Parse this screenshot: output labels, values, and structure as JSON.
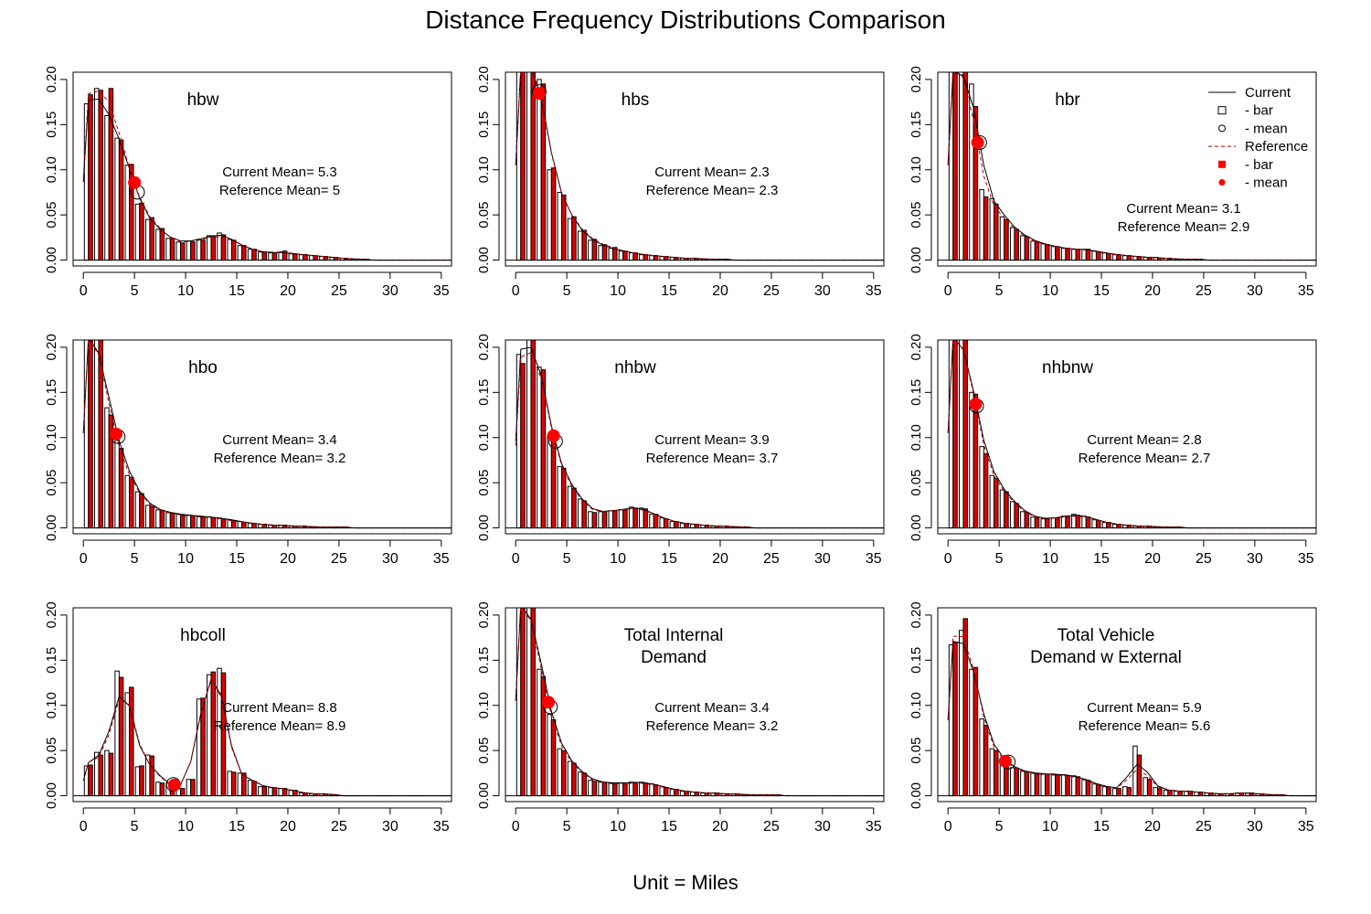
{
  "title": "Distance Frequency Distributions Comparison",
  "xlabel": "Unit = Miles",
  "colors": {
    "current_bar": "#ffffff",
    "reference_bar": "#e00000",
    "current_line": "#000000",
    "reference_line": "#b00000",
    "reference_mean": "#ff0000"
  },
  "legend": {
    "entries": [
      {
        "label": "Current",
        "symbol": "solid-line"
      },
      {
        "label": " - bar",
        "symbol": "open-square"
      },
      {
        "label": " - mean",
        "symbol": "open-circle"
      },
      {
        "label": "Reference",
        "symbol": "dashed-red-line"
      },
      {
        "label": " - bar",
        "symbol": "filled-red-square"
      },
      {
        "label": " - mean",
        "symbol": "filled-red-circle"
      }
    ]
  },
  "chart_data": [
    {
      "type": "bar",
      "name": "hbw",
      "title_lines": [
        "hbw"
      ],
      "current_mean_label": "Current Mean= 5.3",
      "reference_mean_label": "Reference Mean= 5",
      "current_mean": 5.3,
      "reference_mean": 5.0,
      "xlim": [
        -1,
        36
      ],
      "ylim": [
        0,
        0.2
      ],
      "xticks": [
        "0",
        "5",
        "10",
        "15",
        "20",
        "25",
        "30",
        "35"
      ],
      "yticks": [
        "0.00",
        "0.05",
        "0.10",
        "0.15",
        "0.20"
      ],
      "x": [
        0.5,
        1.5,
        2.5,
        3.5,
        4.5,
        5.5,
        6.5,
        7.5,
        8.5,
        9.5,
        10.5,
        11.5,
        12.5,
        13.5,
        14.5,
        15.5,
        16.5,
        17.5,
        18.5,
        19.5,
        20.5,
        21.5,
        22.5,
        23.5,
        24.5,
        25.5,
        26.5,
        27.5
      ],
      "current": [
        0.173,
        0.19,
        0.16,
        0.135,
        0.105,
        0.062,
        0.045,
        0.034,
        0.024,
        0.02,
        0.021,
        0.023,
        0.027,
        0.03,
        0.023,
        0.016,
        0.012,
        0.009,
        0.008,
        0.009,
        0.007,
        0.006,
        0.005,
        0.004,
        0.003,
        0.002,
        0.001,
        0.001
      ],
      "reference": [
        0.183,
        0.188,
        0.19,
        0.133,
        0.106,
        0.063,
        0.047,
        0.035,
        0.024,
        0.019,
        0.02,
        0.022,
        0.026,
        0.028,
        0.022,
        0.016,
        0.012,
        0.009,
        0.008,
        0.01,
        0.007,
        0.006,
        0.005,
        0.004,
        0.003,
        0.002,
        0.001,
        0.001
      ]
    },
    {
      "type": "bar",
      "name": "hbs",
      "title_lines": [
        "hbs"
      ],
      "current_mean_label": "Current Mean= 2.3",
      "reference_mean_label": "Reference Mean= 2.3",
      "current_mean": 2.3,
      "reference_mean": 2.3,
      "xlim": [
        -1,
        36
      ],
      "ylim": [
        0,
        0.2
      ],
      "xticks": [
        "0",
        "5",
        "10",
        "15",
        "20",
        "25",
        "30",
        "35"
      ],
      "yticks": [
        "0.00",
        "0.05",
        "0.10",
        "0.15",
        "0.20"
      ],
      "x": [
        0.5,
        1.5,
        2.5,
        3.5,
        4.5,
        5.5,
        6.5,
        7.5,
        8.5,
        9.5,
        10.5,
        11.5,
        12.5,
        13.5,
        14.5,
        15.5,
        16.5,
        17.5,
        18.5,
        19.5,
        20.5
      ],
      "current": [
        0.21,
        0.22,
        0.2,
        0.1,
        0.075,
        0.046,
        0.032,
        0.022,
        0.016,
        0.013,
        0.01,
        0.008,
        0.006,
        0.005,
        0.004,
        0.003,
        0.002,
        0.002,
        0.001,
        0.001,
        0.001
      ],
      "reference": [
        0.21,
        0.22,
        0.195,
        0.102,
        0.072,
        0.048,
        0.033,
        0.023,
        0.017,
        0.014,
        0.01,
        0.008,
        0.006,
        0.005,
        0.004,
        0.003,
        0.002,
        0.002,
        0.001,
        0.001,
        0.001
      ]
    },
    {
      "type": "bar",
      "name": "hbr",
      "title_lines": [
        "hbr"
      ],
      "current_mean_label": "Current Mean= 3.1",
      "reference_mean_label": "Reference Mean= 2.9",
      "current_mean": 3.1,
      "reference_mean": 2.9,
      "xlim": [
        -1,
        36
      ],
      "ylim": [
        0,
        0.2
      ],
      "xticks": [
        "0",
        "5",
        "10",
        "15",
        "20",
        "25",
        "30",
        "35"
      ],
      "yticks": [
        "0.00",
        "0.05",
        "0.10",
        "0.15",
        "0.20"
      ],
      "x": [
        0.5,
        1.5,
        2.5,
        3.5,
        4.5,
        5.5,
        6.5,
        7.5,
        8.5,
        9.5,
        10.5,
        11.5,
        12.5,
        13.5,
        14.5,
        15.5,
        16.5,
        17.5,
        18.5,
        19.5,
        20.5,
        21.5,
        22.5,
        23.5,
        24.5
      ],
      "current": [
        0.21,
        0.205,
        0.195,
        0.078,
        0.068,
        0.048,
        0.036,
        0.027,
        0.021,
        0.018,
        0.015,
        0.013,
        0.012,
        0.012,
        0.01,
        0.008,
        0.006,
        0.005,
        0.004,
        0.003,
        0.003,
        0.002,
        0.001,
        0.001,
        0.001
      ],
      "reference": [
        0.215,
        0.21,
        0.17,
        0.07,
        0.062,
        0.045,
        0.034,
        0.026,
        0.02,
        0.017,
        0.015,
        0.013,
        0.012,
        0.012,
        0.009,
        0.007,
        0.006,
        0.005,
        0.004,
        0.003,
        0.002,
        0.002,
        0.001,
        0.001,
        0.001
      ]
    },
    {
      "type": "bar",
      "name": "hbo",
      "title_lines": [
        "hbo"
      ],
      "current_mean_label": "Current Mean= 3.4",
      "reference_mean_label": "Reference Mean= 3.2",
      "current_mean": 3.4,
      "reference_mean": 3.2,
      "xlim": [
        -1,
        36
      ],
      "ylim": [
        0,
        0.2
      ],
      "xticks": [
        "0",
        "5",
        "10",
        "15",
        "20",
        "25",
        "30",
        "35"
      ],
      "yticks": [
        "0.00",
        "0.05",
        "0.10",
        "0.15",
        "0.20"
      ],
      "x": [
        0.5,
        1.5,
        2.5,
        3.5,
        4.5,
        5.5,
        6.5,
        7.5,
        8.5,
        9.5,
        10.5,
        11.5,
        12.5,
        13.5,
        14.5,
        15.5,
        16.5,
        17.5,
        18.5,
        19.5,
        20.5,
        21.5,
        22.5,
        23.5,
        24.5,
        25.5
      ],
      "current": [
        0.21,
        0.215,
        0.133,
        0.097,
        0.058,
        0.04,
        0.025,
        0.02,
        0.017,
        0.015,
        0.014,
        0.013,
        0.012,
        0.011,
        0.009,
        0.007,
        0.005,
        0.004,
        0.003,
        0.003,
        0.002,
        0.002,
        0.001,
        0.001,
        0.001,
        0.001
      ],
      "reference": [
        0.21,
        0.215,
        0.125,
        0.088,
        0.056,
        0.038,
        0.024,
        0.019,
        0.016,
        0.014,
        0.013,
        0.012,
        0.011,
        0.01,
        0.008,
        0.006,
        0.005,
        0.004,
        0.003,
        0.003,
        0.002,
        0.002,
        0.001,
        0.001,
        0.001,
        0.001
      ]
    },
    {
      "type": "bar",
      "name": "nhbw",
      "title_lines": [
        "nhbw"
      ],
      "current_mean_label": "Current Mean= 3.9",
      "reference_mean_label": "Reference Mean= 3.7",
      "current_mean": 3.9,
      "reference_mean": 3.7,
      "xlim": [
        -1,
        36
      ],
      "ylim": [
        0,
        0.2
      ],
      "xticks": [
        "0",
        "5",
        "10",
        "15",
        "20",
        "25",
        "30",
        "35"
      ],
      "yticks": [
        "0.00",
        "0.05",
        "0.10",
        "0.15",
        "0.20"
      ],
      "x": [
        0.5,
        1.5,
        2.5,
        3.5,
        4.5,
        5.5,
        6.5,
        7.5,
        8.5,
        9.5,
        10.5,
        11.5,
        12.5,
        13.5,
        14.5,
        15.5,
        16.5,
        17.5,
        18.5,
        19.5,
        20.5,
        21.5,
        22.5
      ],
      "current": [
        0.192,
        0.215,
        0.178,
        0.102,
        0.068,
        0.046,
        0.032,
        0.018,
        0.018,
        0.019,
        0.02,
        0.023,
        0.022,
        0.015,
        0.011,
        0.007,
        0.005,
        0.004,
        0.003,
        0.002,
        0.002,
        0.001,
        0.001
      ],
      "reference": [
        0.182,
        0.21,
        0.175,
        0.1,
        0.066,
        0.044,
        0.03,
        0.017,
        0.018,
        0.019,
        0.02,
        0.022,
        0.021,
        0.015,
        0.01,
        0.007,
        0.005,
        0.004,
        0.003,
        0.002,
        0.002,
        0.001,
        0.001
      ]
    },
    {
      "type": "bar",
      "name": "nhbnw",
      "title_lines": [
        "nhbnw"
      ],
      "current_mean_label": "Current Mean= 2.8",
      "reference_mean_label": "Reference Mean= 2.7",
      "current_mean": 2.8,
      "reference_mean": 2.7,
      "xlim": [
        -1,
        36
      ],
      "ylim": [
        0,
        0.2
      ],
      "xticks": [
        "0",
        "5",
        "10",
        "15",
        "20",
        "25",
        "30",
        "35"
      ],
      "yticks": [
        "0.00",
        "0.05",
        "0.10",
        "0.15",
        "0.20"
      ],
      "x": [
        0.5,
        1.5,
        2.5,
        3.5,
        4.5,
        5.5,
        6.5,
        7.5,
        8.5,
        9.5,
        10.5,
        11.5,
        12.5,
        13.5,
        14.5,
        15.5,
        16.5,
        17.5,
        18.5,
        19.5,
        20.5,
        21.5,
        22.5
      ],
      "current": [
        0.21,
        0.215,
        0.15,
        0.09,
        0.058,
        0.042,
        0.029,
        0.018,
        0.012,
        0.01,
        0.011,
        0.013,
        0.015,
        0.013,
        0.009,
        0.006,
        0.004,
        0.003,
        0.002,
        0.002,
        0.001,
        0.001,
        0.001
      ],
      "reference": [
        0.21,
        0.215,
        0.148,
        0.082,
        0.055,
        0.04,
        0.027,
        0.017,
        0.011,
        0.01,
        0.011,
        0.012,
        0.014,
        0.012,
        0.008,
        0.006,
        0.004,
        0.003,
        0.002,
        0.002,
        0.001,
        0.001,
        0.001
      ]
    },
    {
      "type": "bar",
      "name": "hbcoll",
      "title_lines": [
        "hbcoll"
      ],
      "current_mean_label": "Current Mean= 8.8",
      "reference_mean_label": "Reference Mean= 8.9",
      "current_mean": 8.8,
      "reference_mean": 8.9,
      "xlim": [
        -1,
        36
      ],
      "ylim": [
        0,
        0.2
      ],
      "xticks": [
        "0",
        "5",
        "10",
        "15",
        "20",
        "25",
        "30",
        "35"
      ],
      "yticks": [
        "0.00",
        "0.05",
        "0.10",
        "0.15",
        "0.20"
      ],
      "x": [
        0.5,
        1.5,
        2.5,
        3.5,
        4.5,
        5.5,
        6.5,
        7.5,
        8.5,
        9.5,
        10.5,
        11.5,
        12.5,
        13.5,
        14.5,
        15.5,
        16.5,
        17.5,
        18.5,
        19.5,
        20.5,
        21.5,
        22.5,
        23.5,
        24.5
      ],
      "current": [
        0.033,
        0.048,
        0.05,
        0.138,
        0.114,
        0.032,
        0.045,
        0.015,
        0.014,
        0.008,
        0.018,
        0.107,
        0.134,
        0.141,
        0.027,
        0.025,
        0.017,
        0.01,
        0.009,
        0.008,
        0.006,
        0.003,
        0.002,
        0.002,
        0.001
      ],
      "reference": [
        0.034,
        0.045,
        0.047,
        0.131,
        0.12,
        0.033,
        0.044,
        0.014,
        0.013,
        0.008,
        0.018,
        0.108,
        0.137,
        0.136,
        0.026,
        0.025,
        0.016,
        0.01,
        0.009,
        0.008,
        0.006,
        0.003,
        0.002,
        0.002,
        0.001
      ]
    },
    {
      "type": "bar",
      "name": "Total Internal Demand",
      "title_lines": [
        "Total Internal",
        "Demand"
      ],
      "current_mean_label": "Current Mean= 3.4",
      "reference_mean_label": "Reference Mean= 3.2",
      "current_mean": 3.4,
      "reference_mean": 3.2,
      "xlim": [
        -1,
        36
      ],
      "ylim": [
        0,
        0.2
      ],
      "xticks": [
        "0",
        "5",
        "10",
        "15",
        "20",
        "25",
        "30",
        "35"
      ],
      "yticks": [
        "0.00",
        "0.05",
        "0.10",
        "0.15",
        "0.20"
      ],
      "x": [
        0.5,
        1.5,
        2.5,
        3.5,
        4.5,
        5.5,
        6.5,
        7.5,
        8.5,
        9.5,
        10.5,
        11.5,
        12.5,
        13.5,
        14.5,
        15.5,
        16.5,
        17.5,
        18.5,
        19.5,
        20.5,
        21.5,
        22.5,
        23.5,
        24.5,
        25.5
      ],
      "current": [
        0.21,
        0.215,
        0.14,
        0.09,
        0.052,
        0.038,
        0.026,
        0.017,
        0.015,
        0.014,
        0.014,
        0.015,
        0.015,
        0.013,
        0.01,
        0.007,
        0.005,
        0.004,
        0.003,
        0.003,
        0.002,
        0.002,
        0.001,
        0.001,
        0.001,
        0.001
      ],
      "reference": [
        0.21,
        0.215,
        0.132,
        0.084,
        0.05,
        0.036,
        0.025,
        0.016,
        0.014,
        0.013,
        0.013,
        0.014,
        0.014,
        0.012,
        0.009,
        0.007,
        0.005,
        0.004,
        0.003,
        0.003,
        0.002,
        0.002,
        0.001,
        0.001,
        0.001,
        0.001
      ]
    },
    {
      "type": "bar",
      "name": "Total Vehicle Demand w External",
      "title_lines": [
        "Total Vehicle",
        "Demand w External"
      ],
      "current_mean_label": "Current Mean= 5.9",
      "reference_mean_label": "Reference Mean= 5.6",
      "current_mean": 5.9,
      "reference_mean": 5.6,
      "xlim": [
        -1,
        36
      ],
      "ylim": [
        0,
        0.2
      ],
      "xticks": [
        "0",
        "5",
        "10",
        "15",
        "20",
        "25",
        "30",
        "35"
      ],
      "yticks": [
        "0.00",
        "0.05",
        "0.10",
        "0.15",
        "0.20"
      ],
      "x": [
        0.5,
        1.5,
        2.5,
        3.5,
        4.5,
        5.5,
        6.5,
        7.5,
        8.5,
        9.5,
        10.5,
        11.5,
        12.5,
        13.5,
        14.5,
        15.5,
        16.5,
        17.5,
        18.5,
        19.5,
        20.5,
        21.5,
        22.5,
        23.5,
        24.5,
        25.5,
        26.5,
        27.5,
        28.5,
        29.5,
        30.5,
        31.5,
        32.5
      ],
      "current": [
        0.167,
        0.183,
        0.14,
        0.085,
        0.052,
        0.04,
        0.031,
        0.027,
        0.025,
        0.024,
        0.024,
        0.023,
        0.022,
        0.018,
        0.013,
        0.01,
        0.008,
        0.01,
        0.055,
        0.02,
        0.009,
        0.006,
        0.005,
        0.005,
        0.004,
        0.003,
        0.002,
        0.002,
        0.003,
        0.003,
        0.002,
        0.001,
        0.001
      ],
      "reference": [
        0.17,
        0.196,
        0.142,
        0.078,
        0.05,
        0.038,
        0.03,
        0.026,
        0.024,
        0.023,
        0.023,
        0.022,
        0.021,
        0.017,
        0.012,
        0.009,
        0.008,
        0.009,
        0.045,
        0.018,
        0.008,
        0.006,
        0.005,
        0.005,
        0.004,
        0.003,
        0.002,
        0.002,
        0.003,
        0.003,
        0.002,
        0.001,
        0.001
      ]
    }
  ]
}
